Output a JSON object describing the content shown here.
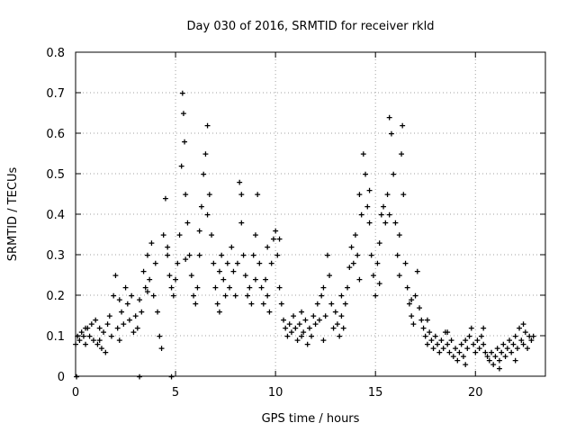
{
  "chart_data": {
    "type": "scatter",
    "title": "Day 030 of 2016, SRMTID for receiver rkld",
    "xlabel": "GPS time / hours",
    "ylabel": "SRMTID / TECUs",
    "xlim": [
      0,
      23.5
    ],
    "ylim": [
      0,
      0.8
    ],
    "xticks": [
      0,
      5,
      10,
      15,
      20
    ],
    "xtick_labels": [
      "0",
      "5",
      "10",
      "15",
      "20"
    ],
    "yticks": [
      0,
      0.1,
      0.2,
      0.3,
      0.4,
      0.5,
      0.6,
      0.7,
      0.8
    ],
    "ytick_labels": [
      "0",
      "0.1",
      "0.2",
      "0.3",
      "0.4",
      "0.5",
      "0.6",
      "0.7",
      "0.8"
    ],
    "grid": true,
    "marker": "+",
    "marker_color": "#ff0000",
    "series": [
      {
        "name": "SRMTID",
        "points": [
          [
            0.0,
            0.08
          ],
          [
            0.1,
            0.1
          ],
          [
            0.2,
            0.09
          ],
          [
            0.3,
            0.11
          ],
          [
            0.4,
            0.1
          ],
          [
            0.5,
            0.08
          ],
          [
            0.6,
            0.12
          ],
          [
            0.7,
            0.1
          ],
          [
            0.8,
            0.13
          ],
          [
            0.9,
            0.09
          ],
          [
            1.0,
            0.14
          ],
          [
            1.1,
            0.08
          ],
          [
            1.2,
            0.12
          ],
          [
            1.3,
            0.07
          ],
          [
            1.4,
            0.11
          ],
          [
            1.5,
            0.06
          ],
          [
            1.6,
            0.13
          ],
          [
            1.7,
            0.15
          ],
          [
            1.8,
            0.1
          ],
          [
            1.9,
            0.2
          ],
          [
            2.0,
            0.25
          ],
          [
            2.1,
            0.12
          ],
          [
            2.2,
            0.09
          ],
          [
            2.3,
            0.16
          ],
          [
            2.4,
            0.13
          ],
          [
            2.5,
            0.22
          ],
          [
            2.6,
            0.18
          ],
          [
            2.7,
            0.14
          ],
          [
            2.8,
            0.2
          ],
          [
            2.9,
            0.11
          ],
          [
            3.0,
            0.15
          ],
          [
            3.1,
            0.12
          ],
          [
            3.2,
            0.19
          ],
          [
            3.3,
            0.16
          ],
          [
            3.4,
            0.26
          ],
          [
            3.5,
            0.22
          ],
          [
            3.6,
            0.3
          ],
          [
            3.7,
            0.24
          ],
          [
            3.8,
            0.33
          ],
          [
            3.9,
            0.2
          ],
          [
            4.0,
            0.28
          ],
          [
            4.1,
            0.16
          ],
          [
            4.2,
            0.1
          ],
          [
            4.3,
            0.07
          ],
          [
            4.4,
            0.35
          ],
          [
            4.5,
            0.44
          ],
          [
            4.6,
            0.3
          ],
          [
            4.7,
            0.25
          ],
          [
            4.8,
            0.22
          ],
          [
            4.9,
            0.2
          ],
          [
            5.0,
            0.24
          ],
          [
            5.1,
            0.28
          ],
          [
            5.2,
            0.35
          ],
          [
            5.3,
            0.52
          ],
          [
            5.35,
            0.7
          ],
          [
            5.4,
            0.65
          ],
          [
            5.45,
            0.58
          ],
          [
            5.5,
            0.45
          ],
          [
            5.6,
            0.38
          ],
          [
            5.7,
            0.3
          ],
          [
            5.8,
            0.25
          ],
          [
            5.9,
            0.2
          ],
          [
            6.0,
            0.18
          ],
          [
            6.1,
            0.22
          ],
          [
            6.2,
            0.3
          ],
          [
            6.3,
            0.42
          ],
          [
            6.4,
            0.5
          ],
          [
            6.5,
            0.55
          ],
          [
            6.6,
            0.62
          ],
          [
            6.7,
            0.45
          ],
          [
            6.8,
            0.35
          ],
          [
            6.9,
            0.28
          ],
          [
            7.0,
            0.22
          ],
          [
            7.1,
            0.18
          ],
          [
            7.2,
            0.26
          ],
          [
            7.3,
            0.3
          ],
          [
            7.4,
            0.24
          ],
          [
            7.5,
            0.2
          ],
          [
            7.6,
            0.28
          ],
          [
            7.7,
            0.22
          ],
          [
            7.8,
            0.32
          ],
          [
            7.9,
            0.26
          ],
          [
            8.0,
            0.2
          ],
          [
            8.1,
            0.28
          ],
          [
            8.2,
            0.48
          ],
          [
            8.3,
            0.45
          ],
          [
            8.4,
            0.3
          ],
          [
            8.5,
            0.25
          ],
          [
            8.6,
            0.2
          ],
          [
            8.7,
            0.22
          ],
          [
            8.8,
            0.18
          ],
          [
            8.9,
            0.3
          ],
          [
            9.0,
            0.35
          ],
          [
            9.1,
            0.45
          ],
          [
            9.2,
            0.28
          ],
          [
            9.3,
            0.22
          ],
          [
            9.4,
            0.18
          ],
          [
            9.5,
            0.24
          ],
          [
            9.6,
            0.2
          ],
          [
            9.7,
            0.16
          ],
          [
            9.8,
            0.28
          ],
          [
            9.9,
            0.34
          ],
          [
            10.0,
            0.36
          ],
          [
            10.1,
            0.3
          ],
          [
            10.2,
            0.22
          ],
          [
            10.3,
            0.18
          ],
          [
            10.4,
            0.14
          ],
          [
            10.5,
            0.12
          ],
          [
            10.6,
            0.1
          ],
          [
            10.7,
            0.13
          ],
          [
            10.8,
            0.11
          ],
          [
            10.9,
            0.15
          ],
          [
            11.0,
            0.12
          ],
          [
            11.1,
            0.09
          ],
          [
            11.2,
            0.13
          ],
          [
            11.3,
            0.16
          ],
          [
            11.4,
            0.11
          ],
          [
            11.5,
            0.14
          ],
          [
            11.6,
            0.08
          ],
          [
            11.7,
            0.12
          ],
          [
            11.8,
            0.1
          ],
          [
            11.9,
            0.15
          ],
          [
            12.0,
            0.13
          ],
          [
            12.1,
            0.18
          ],
          [
            12.2,
            0.14
          ],
          [
            12.3,
            0.2
          ],
          [
            12.4,
            0.22
          ],
          [
            12.5,
            0.15
          ],
          [
            12.6,
            0.3
          ],
          [
            12.7,
            0.25
          ],
          [
            12.8,
            0.18
          ],
          [
            12.9,
            0.12
          ],
          [
            13.0,
            0.16
          ],
          [
            13.1,
            0.13
          ],
          [
            13.2,
            0.1
          ],
          [
            13.3,
            0.15
          ],
          [
            13.4,
            0.12
          ],
          [
            13.5,
            0.18
          ],
          [
            13.6,
            0.22
          ],
          [
            13.7,
            0.27
          ],
          [
            13.8,
            0.32
          ],
          [
            13.9,
            0.28
          ],
          [
            14.0,
            0.35
          ],
          [
            14.1,
            0.3
          ],
          [
            14.2,
            0.45
          ],
          [
            14.3,
            0.4
          ],
          [
            14.4,
            0.55
          ],
          [
            14.5,
            0.5
          ],
          [
            14.6,
            0.42
          ],
          [
            14.7,
            0.38
          ],
          [
            14.8,
            0.3
          ],
          [
            14.9,
            0.25
          ],
          [
            15.0,
            0.2
          ],
          [
            15.1,
            0.28
          ],
          [
            15.2,
            0.33
          ],
          [
            15.3,
            0.4
          ],
          [
            15.4,
            0.42
          ],
          [
            15.5,
            0.38
          ],
          [
            15.6,
            0.45
          ],
          [
            15.7,
            0.64
          ],
          [
            15.8,
            0.6
          ],
          [
            15.9,
            0.5
          ],
          [
            16.0,
            0.38
          ],
          [
            16.1,
            0.3
          ],
          [
            16.2,
            0.25
          ],
          [
            16.3,
            0.55
          ],
          [
            16.35,
            0.62
          ],
          [
            16.4,
            0.45
          ],
          [
            16.5,
            0.28
          ],
          [
            16.6,
            0.22
          ],
          [
            16.7,
            0.18
          ],
          [
            16.8,
            0.15
          ],
          [
            16.9,
            0.13
          ],
          [
            17.0,
            0.2
          ],
          [
            17.1,
            0.26
          ],
          [
            17.2,
            0.17
          ],
          [
            17.3,
            0.14
          ],
          [
            17.4,
            0.12
          ],
          [
            17.5,
            0.1
          ],
          [
            17.6,
            0.08
          ],
          [
            17.7,
            0.11
          ],
          [
            17.8,
            0.09
          ],
          [
            17.9,
            0.07
          ],
          [
            18.0,
            0.1
          ],
          [
            18.1,
            0.08
          ],
          [
            18.2,
            0.06
          ],
          [
            18.3,
            0.09
          ],
          [
            18.4,
            0.07
          ],
          [
            18.5,
            0.11
          ],
          [
            18.6,
            0.08
          ],
          [
            18.7,
            0.06
          ],
          [
            18.8,
            0.09
          ],
          [
            18.9,
            0.05
          ],
          [
            19.0,
            0.07
          ],
          [
            19.1,
            0.04
          ],
          [
            19.2,
            0.06
          ],
          [
            19.3,
            0.08
          ],
          [
            19.4,
            0.05
          ],
          [
            19.5,
            0.09
          ],
          [
            19.6,
            0.07
          ],
          [
            19.7,
            0.1
          ],
          [
            19.8,
            0.12
          ],
          [
            19.9,
            0.08
          ],
          [
            20.0,
            0.06
          ],
          [
            20.1,
            0.09
          ],
          [
            20.2,
            0.07
          ],
          [
            20.3,
            0.1
          ],
          [
            20.4,
            0.08
          ],
          [
            20.5,
            0.06
          ],
          [
            20.6,
            0.05
          ],
          [
            20.7,
            0.04
          ],
          [
            20.8,
            0.06
          ],
          [
            20.9,
            0.03
          ],
          [
            21.0,
            0.05
          ],
          [
            21.1,
            0.07
          ],
          [
            21.2,
            0.04
          ],
          [
            21.3,
            0.06
          ],
          [
            21.4,
            0.08
          ],
          [
            21.5,
            0.05
          ],
          [
            21.6,
            0.07
          ],
          [
            21.7,
            0.09
          ],
          [
            21.8,
            0.06
          ],
          [
            21.9,
            0.08
          ],
          [
            22.0,
            0.1
          ],
          [
            22.1,
            0.07
          ],
          [
            22.2,
            0.12
          ],
          [
            22.3,
            0.09
          ],
          [
            22.4,
            0.08
          ],
          [
            22.5,
            0.11
          ],
          [
            22.6,
            0.07
          ],
          [
            22.7,
            0.1
          ],
          [
            22.8,
            0.09
          ],
          [
            0.5,
            0.12
          ],
          [
            1.2,
            0.09
          ],
          [
            2.2,
            0.19
          ],
          [
            3.6,
            0.21
          ],
          [
            4.6,
            0.32
          ],
          [
            5.5,
            0.29
          ],
          [
            6.2,
            0.36
          ],
          [
            6.6,
            0.4
          ],
          [
            7.2,
            0.16
          ],
          [
            8.3,
            0.38
          ],
          [
            9.0,
            0.24
          ],
          [
            9.6,
            0.32
          ],
          [
            10.2,
            0.34
          ],
          [
            11.3,
            0.1
          ],
          [
            12.4,
            0.09
          ],
          [
            13.3,
            0.2
          ],
          [
            14.2,
            0.24
          ],
          [
            14.7,
            0.46
          ],
          [
            15.2,
            0.23
          ],
          [
            15.7,
            0.4
          ],
          [
            16.2,
            0.35
          ],
          [
            16.8,
            0.19
          ],
          [
            17.6,
            0.14
          ],
          [
            18.6,
            0.11
          ],
          [
            19.5,
            0.03
          ],
          [
            20.4,
            0.12
          ],
          [
            21.2,
            0.02
          ],
          [
            22.0,
            0.04
          ],
          [
            22.4,
            0.13
          ],
          [
            22.9,
            0.1
          ],
          [
            0.05,
            0.0
          ],
          [
            3.2,
            0.0
          ],
          [
            4.8,
            0.0
          ]
        ]
      }
    ]
  }
}
